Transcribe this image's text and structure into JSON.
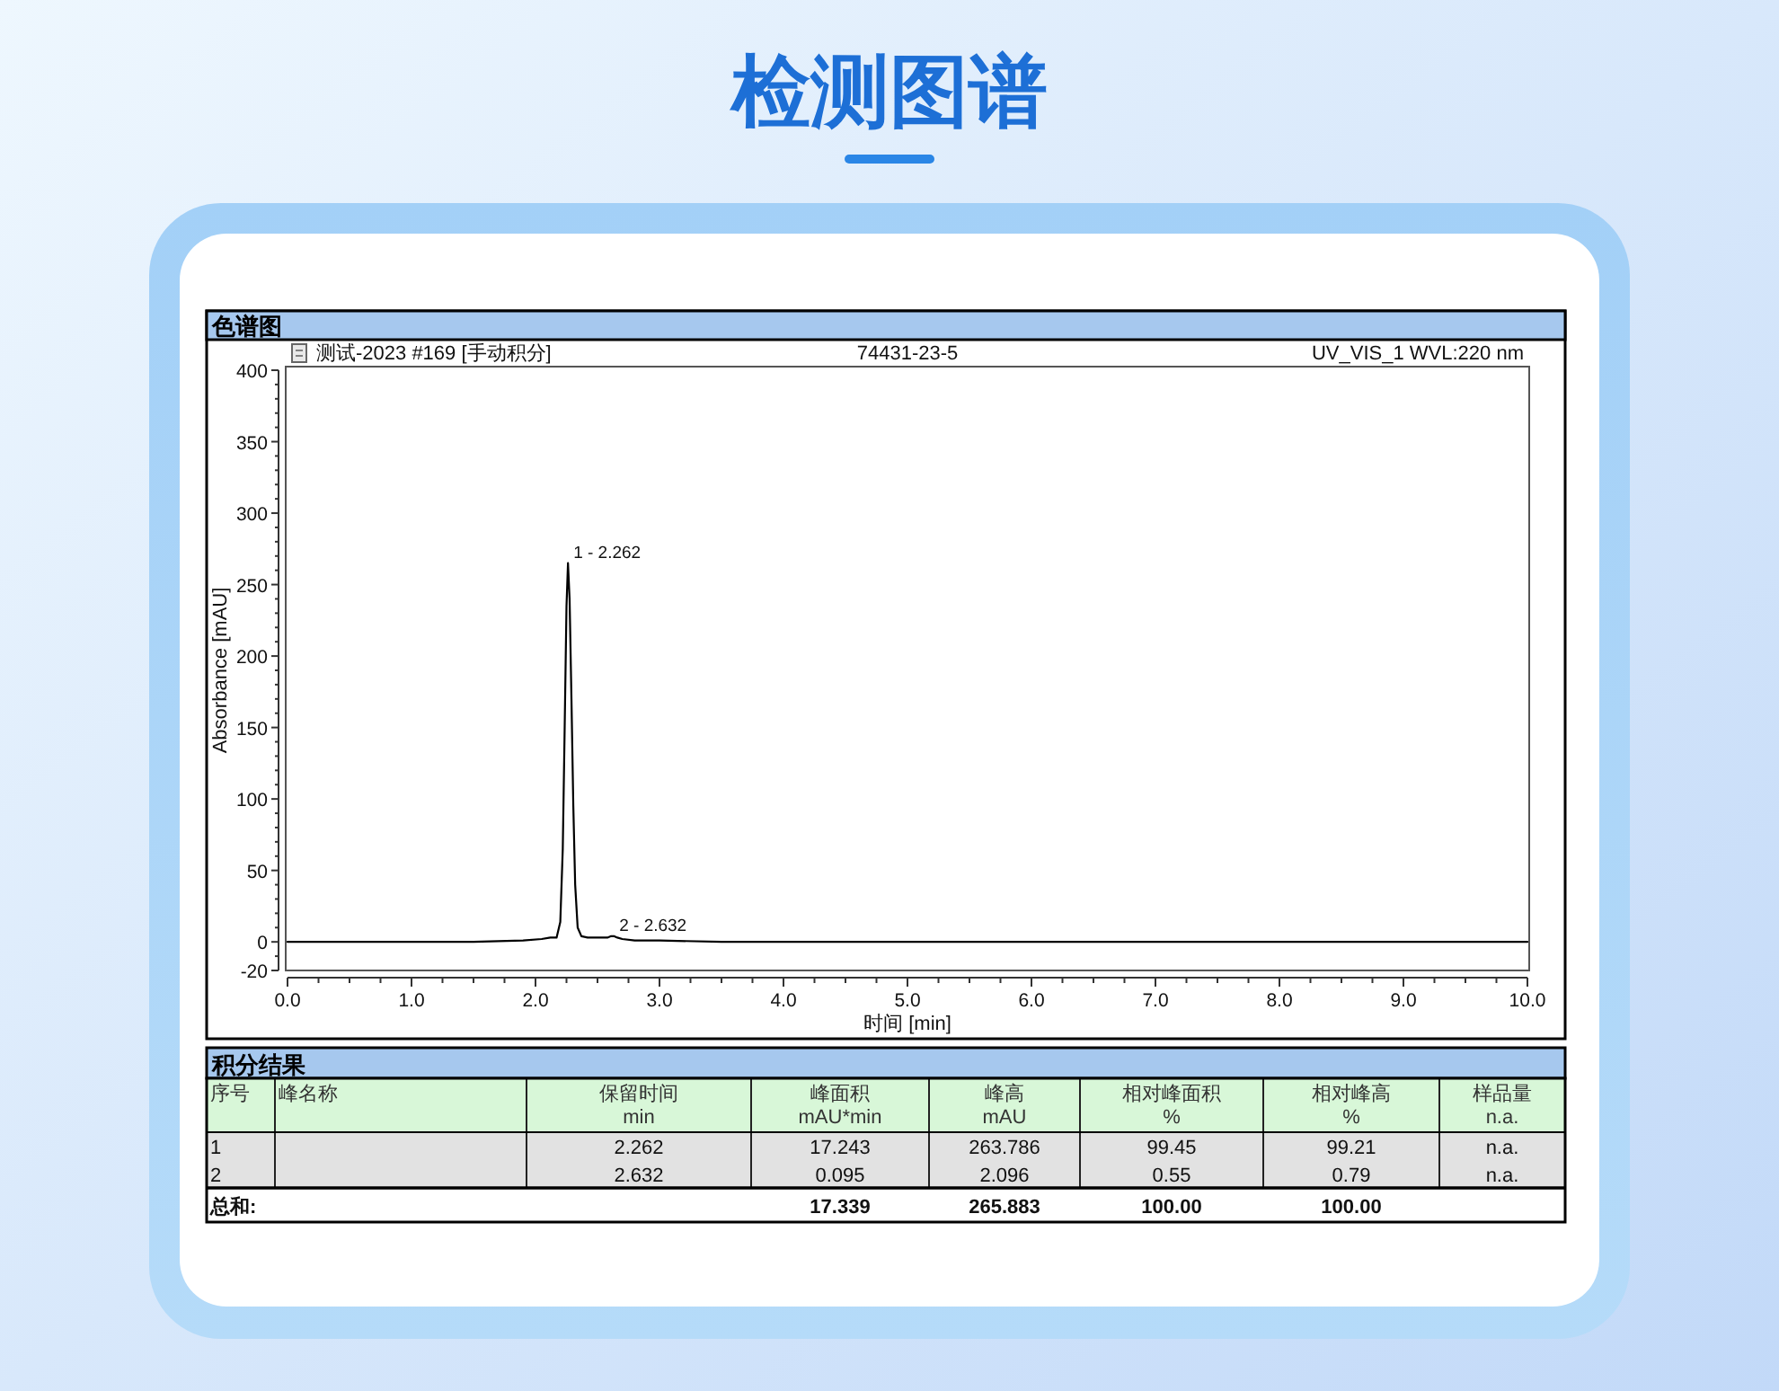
{
  "chart_data": [
    {
      "type": "line",
      "title": "检测图谱",
      "subtitle": "色谱图",
      "xlabel": "时间 [min]",
      "ylabel": "Absorbance [mAU]",
      "annotations": [
        "测试-2023 #169 [手动积分]",
        "74431-23-5",
        "UV_VIS_1 WVL:220 nm",
        {
          "text": "1 - 2.262",
          "x": 2.262,
          "y": 265
        },
        {
          "text": "2 - 2.632",
          "x": 2.632,
          "y": 4
        }
      ],
      "x": [
        0,
        0.5,
        1.0,
        1.5,
        1.9,
        2.05,
        2.12,
        2.17,
        2.2,
        2.22,
        2.235,
        2.25,
        2.262,
        2.275,
        2.29,
        2.305,
        2.32,
        2.34,
        2.37,
        2.42,
        2.5,
        2.58,
        2.61,
        2.632,
        2.66,
        2.7,
        2.8,
        3.0,
        3.5,
        4.0,
        5.0,
        6.0,
        7.0,
        8.0,
        9.0,
        10.0
      ],
      "series": [
        {
          "color": "#000000",
          "values": [
            0,
            0,
            0,
            0,
            1,
            2,
            3,
            3,
            14,
            65,
            148,
            235,
            265,
            240,
            170,
            95,
            40,
            10,
            4,
            3,
            3,
            3,
            4,
            4,
            3,
            2,
            1,
            1,
            0,
            0,
            0,
            0,
            0,
            0,
            0,
            0
          ]
        }
      ],
      "xlim": [
        0,
        10
      ],
      "xticks": [
        {
          "value": 0,
          "label": "0.0"
        },
        {
          "value": 0.25,
          "label": null
        },
        {
          "value": 0.5,
          "label": null
        },
        {
          "value": 0.75,
          "label": null
        },
        {
          "value": 1,
          "label": "1.0"
        },
        {
          "value": 1.25,
          "label": null
        },
        {
          "value": 1.5,
          "label": null
        },
        {
          "value": 1.75,
          "label": null
        },
        {
          "value": 2,
          "label": "2.0"
        },
        {
          "value": 2.25,
          "label": null
        },
        {
          "value": 2.5,
          "label": null
        },
        {
          "value": 2.75,
          "label": null
        },
        {
          "value": 3,
          "label": "3.0"
        },
        {
          "value": 3.25,
          "label": null
        },
        {
          "value": 3.5,
          "label": null
        },
        {
          "value": 3.75,
          "label": null
        },
        {
          "value": 4,
          "label": "4.0"
        },
        {
          "value": 4.25,
          "label": null
        },
        {
          "value": 4.5,
          "label": null
        },
        {
          "value": 4.75,
          "label": null
        },
        {
          "value": 5,
          "label": "5.0"
        },
        {
          "value": 5.25,
          "label": null
        },
        {
          "value": 5.5,
          "label": null
        },
        {
          "value": 5.75,
          "label": null
        },
        {
          "value": 6,
          "label": "6.0"
        },
        {
          "value": 6.25,
          "label": null
        },
        {
          "value": 6.5,
          "label": null
        },
        {
          "value": 6.75,
          "label": null
        },
        {
          "value": 7,
          "label": "7.0"
        },
        {
          "value": 7.25,
          "label": null
        },
        {
          "value": 7.5,
          "label": null
        },
        {
          "value": 7.75,
          "label": null
        },
        {
          "value": 8,
          "label": "8.0"
        },
        {
          "value": 8.25,
          "label": null
        },
        {
          "value": 8.5,
          "label": null
        },
        {
          "value": 8.75,
          "label": null
        },
        {
          "value": 9,
          "label": "9.0"
        },
        {
          "value": 9.25,
          "label": null
        },
        {
          "value": 9.5,
          "label": null
        },
        {
          "value": 9.75,
          "label": null
        },
        {
          "value": 10,
          "label": "10.0"
        }
      ],
      "ylim": [
        -20,
        400
      ],
      "yticks": [
        -20,
        {
          "value": -10,
          "label": null
        },
        0,
        {
          "value": 10,
          "label": null
        },
        {
          "value": 20,
          "label": null
        },
        {
          "value": 30,
          "label": null
        },
        {
          "value": 40,
          "label": null
        },
        50,
        {
          "value": 60,
          "label": null
        },
        {
          "value": 70,
          "label": null
        },
        {
          "value": 80,
          "label": null
        },
        {
          "value": 90,
          "label": null
        },
        100,
        {
          "value": 110,
          "label": null
        },
        {
          "value": 120,
          "label": null
        },
        {
          "value": 130,
          "label": null
        },
        {
          "value": 140,
          "label": null
        },
        150,
        {
          "value": 160,
          "label": null
        },
        {
          "value": 170,
          "label": null
        },
        {
          "value": 180,
          "label": null
        },
        {
          "value": 190,
          "label": null
        },
        200,
        {
          "value": 210,
          "label": null
        },
        {
          "value": 220,
          "label": null
        },
        {
          "value": 230,
          "label": null
        },
        {
          "value": 240,
          "label": null
        },
        250,
        {
          "value": 260,
          "label": null
        },
        {
          "value": 270,
          "label": null
        },
        {
          "value": 280,
          "label": null
        },
        {
          "value": 290,
          "label": null
        },
        300,
        {
          "value": 310,
          "label": null
        },
        {
          "value": 320,
          "label": null
        },
        {
          "value": 330,
          "label": null
        },
        {
          "value": 340,
          "label": null
        },
        350,
        {
          "value": 360,
          "label": null
        },
        {
          "value": 370,
          "label": null
        },
        {
          "value": 380,
          "label": null
        },
        {
          "value": 390,
          "label": null
        },
        400
      ]
    },
    {
      "type": "other",
      "title": "积分结果",
      "categories": [
        "序号",
        "峰名称",
        "保留时间\nmin",
        "峰面积\nmAU*min",
        "峰高\nmAU",
        "相对峰面积\n%",
        "相对峰高\n%",
        "样品量\nn.a."
      ],
      "cell_labels": [
        [
          "1",
          null,
          "2.262",
          "17.243",
          "263.786",
          "99.45",
          "99.21",
          "n.a."
        ],
        [
          "2",
          null,
          "2.632",
          "0.095",
          "2.096",
          "0.55",
          "0.79",
          "n.a."
        ],
        [
          "总和:",
          null,
          null,
          "17.339",
          "265.883",
          "100.00",
          "100.00",
          null
        ]
      ]
    }
  ]
}
